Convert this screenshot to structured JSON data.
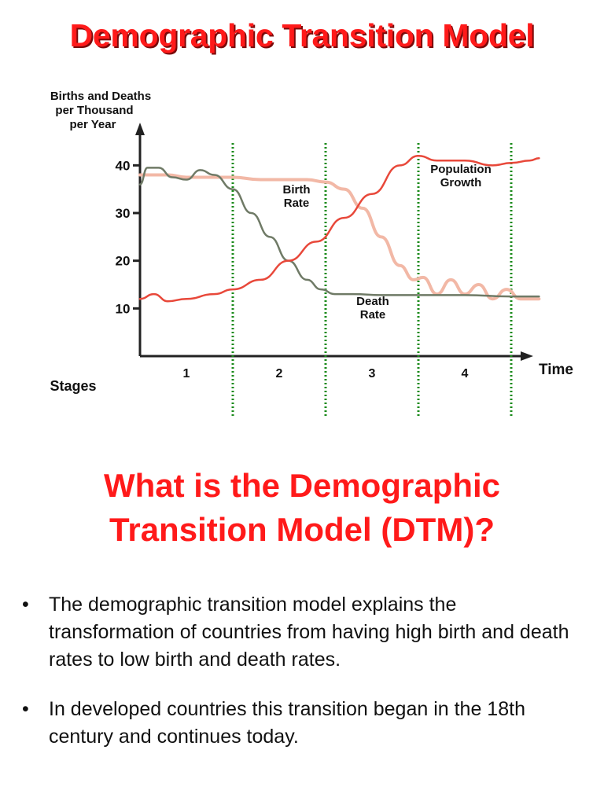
{
  "slide": {
    "title": "Demographic Transition Model",
    "question_lines": [
      "What is the Demographic",
      "Transition Model (DTM)?"
    ],
    "bullet_glyph": "•",
    "bullets": [
      "The demographic transition model explains the transformation of countries from having high birth and death rates to low birth and death rates.",
      "In developed countries this transition began in the 18th century and continues today."
    ]
  },
  "colors": {
    "title": "#ff1a1a",
    "birth_rate": "#f2b8a6",
    "death_rate": "#6f7a66",
    "population_growth": "#e8483a",
    "stage_divider": "#1a8a1a"
  },
  "chart_data": {
    "type": "line",
    "ylabel_lines": [
      "Births and Deaths",
      "per Thousand",
      "per Year"
    ],
    "xlabel": "Time",
    "stages_label": "Stages",
    "stages": [
      "1",
      "2",
      "3",
      "4"
    ],
    "stage_boundaries": [
      1,
      2,
      3,
      4
    ],
    "y_ticks": [
      10,
      20,
      30,
      40
    ],
    "ylim": [
      0,
      45
    ],
    "xlim": [
      0,
      4.3
    ],
    "grid": false,
    "series": [
      {
        "name": "Birth Rate",
        "label_lines": [
          "Birth",
          "Rate"
        ],
        "x": [
          0,
          0.1,
          0.3,
          0.5,
          0.8,
          1.0,
          1.3,
          1.6,
          1.8,
          2.0,
          2.2,
          2.4,
          2.6,
          2.8,
          2.95,
          3.05,
          3.2,
          3.35,
          3.5,
          3.65,
          3.8,
          3.95,
          4.1,
          4.3
        ],
        "values": [
          38,
          38,
          38,
          37.5,
          37.5,
          37.5,
          37,
          37,
          37,
          36.5,
          35,
          31,
          25,
          19,
          16,
          16.5,
          13,
          16,
          13,
          15,
          12,
          14,
          12,
          12
        ]
      },
      {
        "name": "Death Rate",
        "label_lines": [
          "Death",
          "Rate"
        ],
        "x": [
          0,
          0.08,
          0.2,
          0.35,
          0.5,
          0.65,
          0.8,
          1.0,
          1.2,
          1.4,
          1.6,
          1.8,
          1.95,
          2.1,
          2.3,
          2.6,
          3.0,
          3.5,
          4.0,
          4.3
        ],
        "values": [
          36,
          39.5,
          39.5,
          37.5,
          37,
          39,
          38,
          35,
          30,
          25,
          20,
          16,
          14,
          13,
          13,
          12.8,
          12.8,
          12.8,
          12.5,
          12.5
        ]
      },
      {
        "name": "Population Growth",
        "label_lines": [
          "Population",
          "Growth"
        ],
        "x": [
          0,
          0.15,
          0.3,
          0.5,
          0.8,
          1.0,
          1.3,
          1.6,
          1.9,
          2.2,
          2.5,
          2.8,
          3.0,
          3.2,
          3.5,
          3.8,
          4.0,
          4.2,
          4.3
        ],
        "values": [
          12,
          13,
          11.5,
          12,
          13,
          14,
          16,
          20,
          24,
          29,
          34,
          40,
          42,
          41,
          41,
          40,
          40.5,
          41,
          41.5
        ]
      }
    ]
  }
}
